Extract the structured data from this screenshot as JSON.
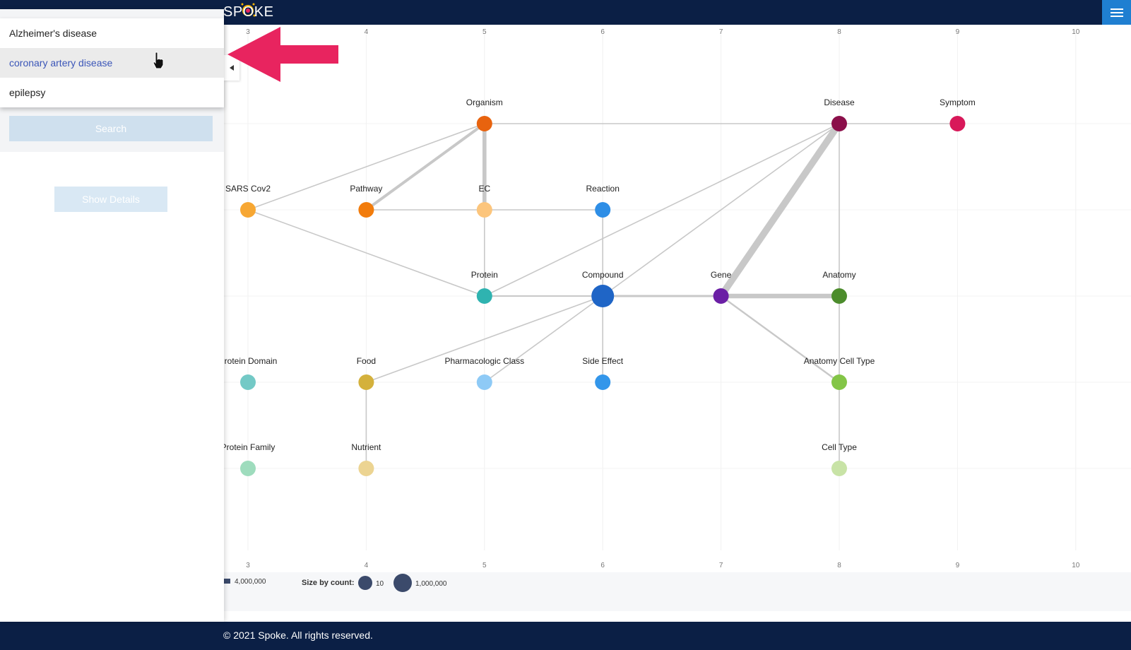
{
  "app": {
    "logo_text": "SPOKE",
    "footer": "© 2021 Spoke. All rights reserved."
  },
  "dropdown": {
    "items": [
      {
        "label": "Alzheimer's disease",
        "hover": false
      },
      {
        "label": "coronary artery disease",
        "hover": true
      },
      {
        "label": "epilepsy",
        "hover": false
      }
    ]
  },
  "sidebar": {
    "search_label": "Search",
    "show_details_label": "Show Details"
  },
  "legend": {
    "edge_count_label": "4,000,000",
    "size_title": "Size by count:",
    "size_small_label": "10",
    "size_large_label": "1,000,000"
  },
  "colors": {
    "nav": "#0b1f45",
    "accent": "#1f7fd1",
    "arrow": "#e8245f"
  },
  "chart_data": {
    "type": "scatter",
    "title": "",
    "x_ticks": [
      "3",
      "4",
      "5",
      "6",
      "7",
      "8",
      "9",
      "10"
    ],
    "grid": true,
    "nodes": [
      {
        "name": "Organism",
        "x": 5,
        "y": 1,
        "color": "#e8630e",
        "size": 1
      },
      {
        "name": "Disease",
        "x": 8,
        "y": 1,
        "color": "#8b0f4a",
        "size": 1
      },
      {
        "name": "Symptom",
        "x": 9,
        "y": 1,
        "color": "#d8195a",
        "size": 1
      },
      {
        "name": "SARS Cov2",
        "x": 3,
        "y": 2,
        "color": "#f7a733",
        "size": 1
      },
      {
        "name": "Pathway",
        "x": 4,
        "y": 2,
        "color": "#f27c0c",
        "size": 1
      },
      {
        "name": "EC",
        "x": 5,
        "y": 2,
        "color": "#fcc57c",
        "size": 1
      },
      {
        "name": "Reaction",
        "x": 6,
        "y": 2,
        "color": "#2e8ee6",
        "size": 1
      },
      {
        "name": "Protein",
        "x": 5,
        "y": 3,
        "color": "#2fb3b0",
        "size": 1
      },
      {
        "name": "Compound",
        "x": 6,
        "y": 3,
        "color": "#1f65c6",
        "size": 2
      },
      {
        "name": "Gene",
        "x": 7,
        "y": 3,
        "color": "#6b1fa5",
        "size": 1
      },
      {
        "name": "Anatomy",
        "x": 8,
        "y": 3,
        "color": "#4c8c2c",
        "size": 1
      },
      {
        "name": "Protein Domain",
        "x": 3,
        "y": 4,
        "color": "#73c9c6",
        "size": 1
      },
      {
        "name": "Food",
        "x": 4,
        "y": 4,
        "color": "#d4b13c",
        "size": 1
      },
      {
        "name": "Pharmacologic Class",
        "x": 5,
        "y": 4,
        "color": "#8ecaf6",
        "size": 1
      },
      {
        "name": "Side Effect",
        "x": 6,
        "y": 4,
        "color": "#3396ea",
        "size": 1
      },
      {
        "name": "Anatomy Cell Type",
        "x": 8,
        "y": 4,
        "color": "#83c547",
        "size": 1
      },
      {
        "name": "Protein Family",
        "x": 3,
        "y": 5,
        "color": "#9edcbd",
        "size": 1
      },
      {
        "name": "Nutrient",
        "x": 4,
        "y": 5,
        "color": "#ecd492",
        "size": 1
      },
      {
        "name": "Cell Type",
        "x": 8,
        "y": 5,
        "color": "#c8e3a6",
        "size": 1
      }
    ],
    "edges": [
      {
        "from": "Organism",
        "to": "Disease",
        "weight": 1
      },
      {
        "from": "Disease",
        "to": "Symptom",
        "weight": 1
      },
      {
        "from": "Organism",
        "to": "Pathway",
        "weight": 2.5
      },
      {
        "from": "Organism",
        "to": "EC",
        "weight": 3.5
      },
      {
        "from": "Organism",
        "to": "SARS Cov2",
        "weight": 1
      },
      {
        "from": "SARS Cov2",
        "to": "Protein",
        "weight": 1
      },
      {
        "from": "Pathway",
        "to": "EC",
        "weight": 1
      },
      {
        "from": "EC",
        "to": "Reaction",
        "weight": 1
      },
      {
        "from": "EC",
        "to": "Protein",
        "weight": 1
      },
      {
        "from": "Reaction",
        "to": "Compound",
        "weight": 1
      },
      {
        "from": "Protein",
        "to": "Compound",
        "weight": 1.3
      },
      {
        "from": "Protein",
        "to": "Disease",
        "weight": 1
      },
      {
        "from": "Compound",
        "to": "Disease",
        "weight": 1
      },
      {
        "from": "Compound",
        "to": "Gene",
        "weight": 1.8
      },
      {
        "from": "Gene",
        "to": "Disease",
        "weight": 6
      },
      {
        "from": "Gene",
        "to": "Anatomy",
        "weight": 4
      },
      {
        "from": "Gene",
        "to": "Anatomy Cell Type",
        "weight": 1.5
      },
      {
        "from": "Disease",
        "to": "Anatomy",
        "weight": 1
      },
      {
        "from": "Anatomy",
        "to": "Anatomy Cell Type",
        "weight": 1
      },
      {
        "from": "Anatomy Cell Type",
        "to": "Cell Type",
        "weight": 1
      },
      {
        "from": "Compound",
        "to": "Food",
        "weight": 1
      },
      {
        "from": "Compound",
        "to": "Pharmacologic Class",
        "weight": 1
      },
      {
        "from": "Compound",
        "to": "Side Effect",
        "weight": 1
      },
      {
        "from": "Food",
        "to": "Nutrient",
        "weight": 1
      }
    ]
  }
}
